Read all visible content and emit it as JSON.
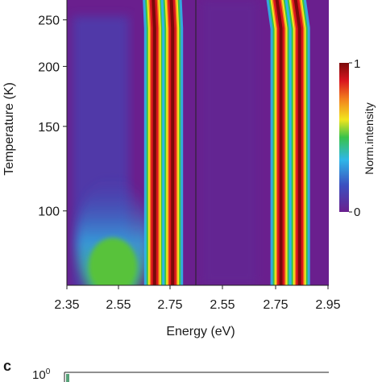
{
  "chart_data": {
    "type": "heatmap",
    "xlabel": "Energy (eV)",
    "ylabel": "Temperature (K)",
    "colorbar": {
      "label": "Norm.intensity",
      "max_label": "1",
      "min_label": "0",
      "range": [
        0,
        1
      ]
    },
    "panels": [
      {
        "xlim": [
          2.35,
          2.85
        ],
        "x_ticks": [
          "2.35",
          "2.55",
          "2.75"
        ],
        "peaks_eV_at_low_T": [
          2.69,
          2.76
        ],
        "peaks_eV_at_high_T": [
          2.685,
          2.755
        ],
        "shoulder_eV_at_low_T": 2.55
      },
      {
        "xlim": [
          2.45,
          2.95
        ],
        "x_ticks": [
          "2.55",
          "2.75",
          "2.95"
        ],
        "peaks_eV_at_low_T": [
          2.77,
          2.84
        ],
        "peaks_eV_at_high_T": [
          2.755,
          2.825
        ]
      }
    ],
    "y_scale": "log",
    "ylim": [
      70,
      275
    ],
    "y_ticks": [
      "100",
      "150",
      "200",
      "250"
    ]
  },
  "next_panel": {
    "label": "c",
    "y_tick_base": "10",
    "y_tick_exp": "0"
  },
  "colors": {
    "colormap": [
      "#6a1f8e",
      "#3b4fc0",
      "#2fb7e8",
      "#38c24a",
      "#f2e51e",
      "#f27d1e",
      "#d9151f",
      "#7a0a0a"
    ]
  }
}
